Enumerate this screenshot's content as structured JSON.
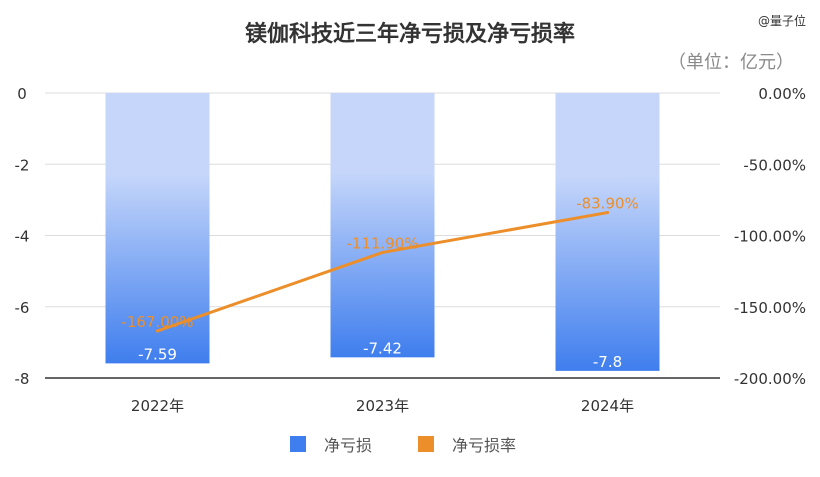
{
  "title": "镁伽科技近三年净亏损及净亏损率",
  "watermark": "@量子位",
  "unit_note": "（单位：亿元）",
  "colors": {
    "bar_top": "#c5d6fa",
    "bar_bottom": "#3f7eee",
    "line": "#ec8f2a",
    "axis": "#333333",
    "grid": "#dddddd",
    "tick_text": "#333333"
  },
  "legend": [
    {
      "label": "净亏损",
      "color": "#3f7eee",
      "type": "bar"
    },
    {
      "label": "净亏损率",
      "color": "#ec8f2a",
      "type": "line"
    }
  ],
  "chart_data": {
    "type": "bar",
    "categories": [
      "2022年",
      "2023年",
      "2024年"
    ],
    "series": [
      {
        "name": "净亏损",
        "type": "bar",
        "axis": "left",
        "values": [
          -7.59,
          -7.42,
          -7.8
        ],
        "labels": [
          "-7.59",
          "-7.42",
          "-7.8"
        ]
      },
      {
        "name": "净亏损率",
        "type": "line",
        "axis": "right",
        "values": [
          -167.0,
          -111.9,
          -83.9
        ],
        "labels": [
          "-167.00%",
          "-111.90%",
          "-83.90%"
        ]
      }
    ],
    "y_left": {
      "ylim": [
        -8,
        0
      ],
      "ticks": [
        0,
        -2,
        -4,
        -6,
        -8
      ],
      "tick_labels": [
        "0",
        "-2",
        "-4",
        "-6",
        "-8"
      ]
    },
    "y_right": {
      "ylim": [
        -200,
        0
      ],
      "ticks": [
        0,
        -50,
        -100,
        -150,
        -200
      ],
      "tick_labels": [
        "0.00%",
        "-50.00%",
        "-100.00%",
        "-150.00%",
        "-200.00%"
      ]
    },
    "grid": true,
    "legend_position": "bottom"
  }
}
